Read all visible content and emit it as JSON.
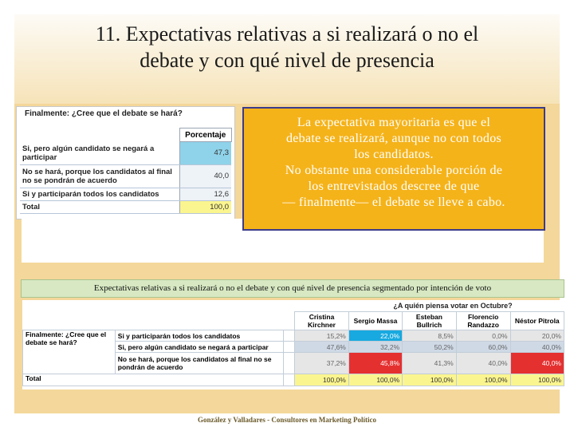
{
  "slide": {
    "title_lines": [
      "11. Expectativas relativas a si realizará o no el",
      "debate y con qué nivel de presencia"
    ]
  },
  "table1": {
    "title": "Finalmente: ¿Cree que el debate se hará?",
    "column_header": "Porcentaje",
    "rows": [
      {
        "label": "Si, pero algún candidato se negará a participar",
        "value": "47,3"
      },
      {
        "label": "No se hará, porque los candidatos al final no se pondrán de acuerdo",
        "value": "40,0"
      },
      {
        "label": "Si y participarán todos los candidatos",
        "value": "12,6"
      },
      {
        "label": "Total",
        "value": "100,0"
      }
    ]
  },
  "callout": {
    "lines": [
      "La expectativa mayoritaria es que el",
      "debate se realizará, aunque no con todos",
      "los candidatos.",
      "No obstante una considerable porción de",
      "los entrevistados descree de que",
      "— finalmente— el debate se lleve a cabo."
    ]
  },
  "caption": "Expectativas relativas a si realizará o no el debate y con qué nivel de presencia segmentado por intención de voto",
  "table2": {
    "group_header": "¿A quién piensa votar en Octubre?",
    "candidates": [
      "Cristina Kirchner",
      "Sergio Massa",
      "Esteban Bullrich",
      "Florencio Randazzo",
      "Néstor Pitrola"
    ],
    "question": "Finalmente: ¿Cree que el debate se hará?",
    "rows": [
      {
        "label": "Si y participarán todos los candidatos",
        "values": [
          "15,2%",
          "22,0%",
          "8,5%",
          "0,0%",
          "20,0%"
        ]
      },
      {
        "label": "Si, pero algún candidato se negará a participar",
        "values": [
          "47,6%",
          "32,2%",
          "50,2%",
          "60,0%",
          "40,0%"
        ]
      },
      {
        "label": "No se hará, porque los candidatos al final no se pondrán de acuerdo",
        "values": [
          "37,2%",
          "45,8%",
          "41,3%",
          "40,0%",
          "40,0%"
        ]
      }
    ],
    "total_label": "Total",
    "total_values": [
      "100,0%",
      "100,0%",
      "100,0%",
      "100,0%",
      "100,0%"
    ]
  },
  "footer": "González y Valladares - Consultores en Marketing Político",
  "colors": {
    "background": "#f4d79a",
    "callout": "#f5b31a",
    "highlight_blue": "#18a9e0",
    "highlight_red": "#e53030",
    "total_yellow": "#fbf58f"
  }
}
